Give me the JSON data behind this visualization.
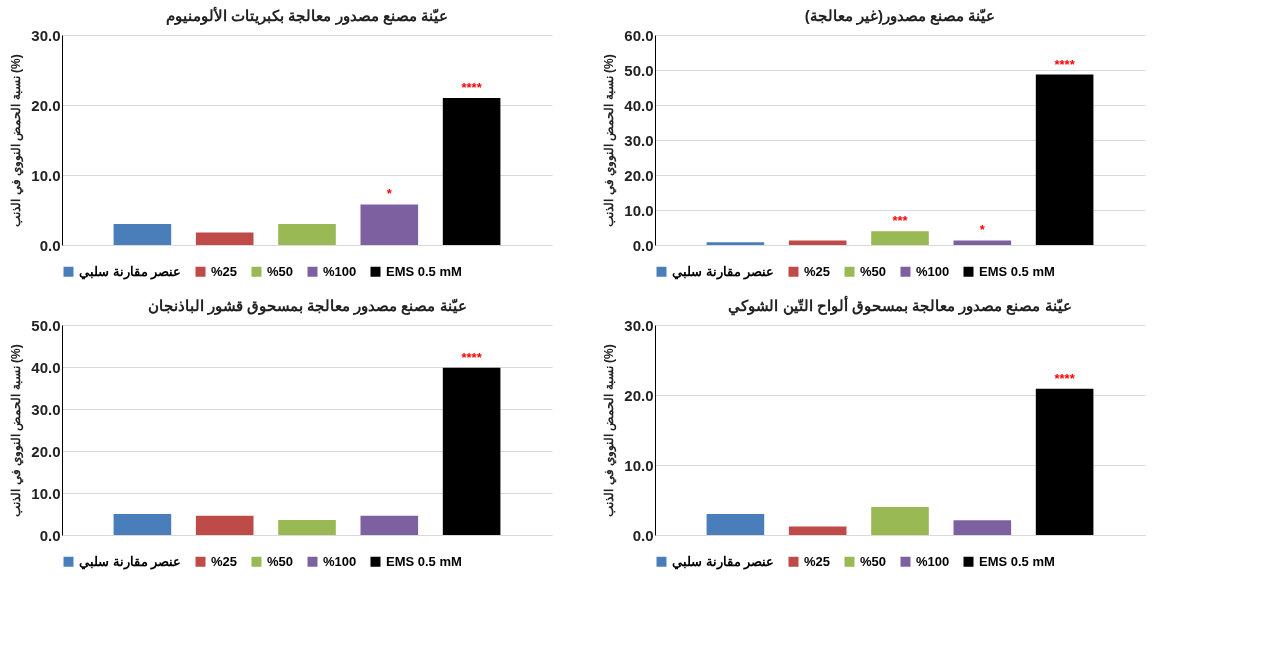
{
  "chart_data": [
    {
      "type": "bar",
      "title": "عيّنة مصنع مصدور معالجة بكبريتات الألومنيوم",
      "ylabel": "نسبة الحمض النووي في الذنب (%)",
      "categories": [
        null
      ],
      "ylim": [
        0,
        30
      ],
      "yticks": [
        {
          "value": 0,
          "label": "0.0"
        },
        {
          "value": 10,
          "label": "10.0"
        },
        {
          "value": 20,
          "label": "20.0"
        },
        {
          "value": 30,
          "label": "30.0"
        }
      ],
      "grid": "y",
      "legend": "bottom",
      "series": [
        {
          "name": "عنصر مقارنة سلبي",
          "color": "#4a7ebb",
          "values": [
            3.0
          ]
        },
        {
          "name": "%25",
          "color": "#be4b48",
          "values": [
            1.8
          ]
        },
        {
          "name": "%50",
          "color": "#98b954",
          "values": [
            3.0
          ]
        },
        {
          "name": "%100",
          "color": "#7d60a0",
          "values": [
            5.8
          ],
          "value_labels": [
            "*"
          ]
        },
        {
          "name": "EMS 0.5 mM",
          "color": "#000000",
          "values": [
            21.0
          ],
          "value_labels": [
            "****"
          ]
        }
      ]
    },
    {
      "type": "bar",
      "title": "عيّنة مصنع مصدور(غير معالجة)",
      "ylabel": "نسبة الحمض النووي في الذنب (%)",
      "categories": [
        null
      ],
      "ylim": [
        0,
        60
      ],
      "yticks": [
        {
          "value": 0,
          "label": "0.0"
        },
        {
          "value": 10,
          "label": "10.0"
        },
        {
          "value": 20,
          "label": "20.0"
        },
        {
          "value": 30,
          "label": "30.0"
        },
        {
          "value": 40,
          "label": "40.0"
        },
        {
          "value": 50,
          "label": "50.0"
        },
        {
          "value": 60,
          "label": "60.0"
        }
      ],
      "grid": "y",
      "legend": "bottom",
      "series": [
        {
          "name": "عنصر مقارنة سلبي",
          "color": "#4a7ebb",
          "values": [
            0.8
          ]
        },
        {
          "name": "%25",
          "color": "#be4b48",
          "values": [
            1.3
          ]
        },
        {
          "name": "%50",
          "color": "#98b954",
          "values": [
            3.9
          ],
          "value_labels": [
            "***"
          ]
        },
        {
          "name": "%100",
          "color": "#7d60a0",
          "values": [
            1.3
          ],
          "value_labels": [
            "*"
          ]
        },
        {
          "name": "EMS 0.5 mM",
          "color": "#000000",
          "values": [
            48.7
          ],
          "value_labels": [
            "****"
          ]
        }
      ]
    },
    {
      "type": "bar",
      "title": "عيّنة مصنع مصدور معالجة بمسحوق قشور الباذنجان",
      "ylabel": "نسبة الحمض النووي في الذنب (%)",
      "categories": [
        null
      ],
      "ylim": [
        0,
        50
      ],
      "yticks": [
        {
          "value": 0,
          "label": "0.0"
        },
        {
          "value": 10,
          "label": "10.0"
        },
        {
          "value": 20,
          "label": "20.0"
        },
        {
          "value": 30,
          "label": "30.0"
        },
        {
          "value": 40,
          "label": "40.0"
        },
        {
          "value": 50,
          "label": "50.0"
        }
      ],
      "grid": "y",
      "legend": "bottom",
      "series": [
        {
          "name": "عنصر مقارنة سلبي",
          "color": "#4a7ebb",
          "values": [
            5.0
          ]
        },
        {
          "name": "%25",
          "color": "#be4b48",
          "values": [
            4.6
          ]
        },
        {
          "name": "%50",
          "color": "#98b954",
          "values": [
            3.6
          ]
        },
        {
          "name": "%100",
          "color": "#7d60a0",
          "values": [
            4.6
          ]
        },
        {
          "name": "EMS 0.5 mM",
          "color": "#000000",
          "values": [
            39.8
          ],
          "value_labels": [
            "****"
          ]
        }
      ]
    },
    {
      "type": "bar",
      "title": "عيّنة مصنع مصدور معالجة بمسحوق ألواح التّين الشوكي",
      "ylabel": "نسبة الحمض النووي في الذنب (%)",
      "categories": [
        null
      ],
      "ylim": [
        0,
        30
      ],
      "yticks": [
        {
          "value": 0,
          "label": "0.0"
        },
        {
          "value": 10,
          "label": "10.0"
        },
        {
          "value": 20,
          "label": "20.0"
        },
        {
          "value": 30,
          "label": "30.0"
        }
      ],
      "grid": "y",
      "legend": "bottom",
      "series": [
        {
          "name": "عنصر مقارنة سلبي",
          "color": "#4a7ebb",
          "values": [
            3.0
          ]
        },
        {
          "name": "%25",
          "color": "#be4b48",
          "values": [
            1.2
          ]
        },
        {
          "name": "%50",
          "color": "#98b954",
          "values": [
            4.0
          ]
        },
        {
          "name": "%100",
          "color": "#7d60a0",
          "values": [
            2.1
          ]
        },
        {
          "name": "EMS 0.5 mM",
          "color": "#000000",
          "values": [
            20.9
          ],
          "value_labels": [
            "****"
          ]
        }
      ]
    }
  ]
}
